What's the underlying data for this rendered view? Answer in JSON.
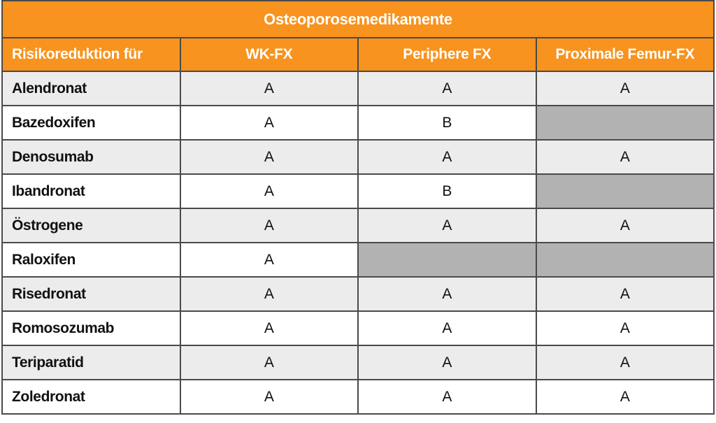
{
  "colors": {
    "orange": "#F7931E",
    "header_text": "#FFFFFF",
    "body_text": "#111111",
    "row_alt": "#ECECEC",
    "row_plain": "#FFFFFF",
    "nodata_cell": "#B2B2B2",
    "border": "#4A4A4A",
    "border_outer": "#262626"
  },
  "chart_data": {
    "type": "table",
    "title": "Osteoporosemedikamente",
    "columns": [
      "Risikoreduktion für",
      "WK-FX",
      "Periphere FX",
      "Proximale Femur-FX"
    ],
    "rows": [
      {
        "label": "Alendronat",
        "values": [
          "A",
          "A",
          "A"
        ]
      },
      {
        "label": "Bazedoxifen",
        "values": [
          "A",
          "B",
          null
        ]
      },
      {
        "label": "Denosumab",
        "values": [
          "A",
          "A",
          "A"
        ]
      },
      {
        "label": "Ibandronat",
        "values": [
          "A",
          "B",
          null
        ]
      },
      {
        "label": "Östrogene",
        "values": [
          "A",
          "A",
          "A"
        ]
      },
      {
        "label": "Raloxifen",
        "values": [
          "A",
          null,
          null
        ]
      },
      {
        "label": "Risedronat",
        "values": [
          "A",
          "A",
          "A"
        ]
      },
      {
        "label": "Romosozumab",
        "values": [
          "A",
          "A",
          "A"
        ]
      },
      {
        "label": "Teriparatid",
        "values": [
          "A",
          "A",
          "A"
        ]
      },
      {
        "label": "Zoledronat",
        "values": [
          "A",
          "A",
          "A"
        ]
      }
    ],
    "legend_note_visible": false,
    "layout": {
      "equal_column_widths": true,
      "striped_rows": true
    }
  }
}
